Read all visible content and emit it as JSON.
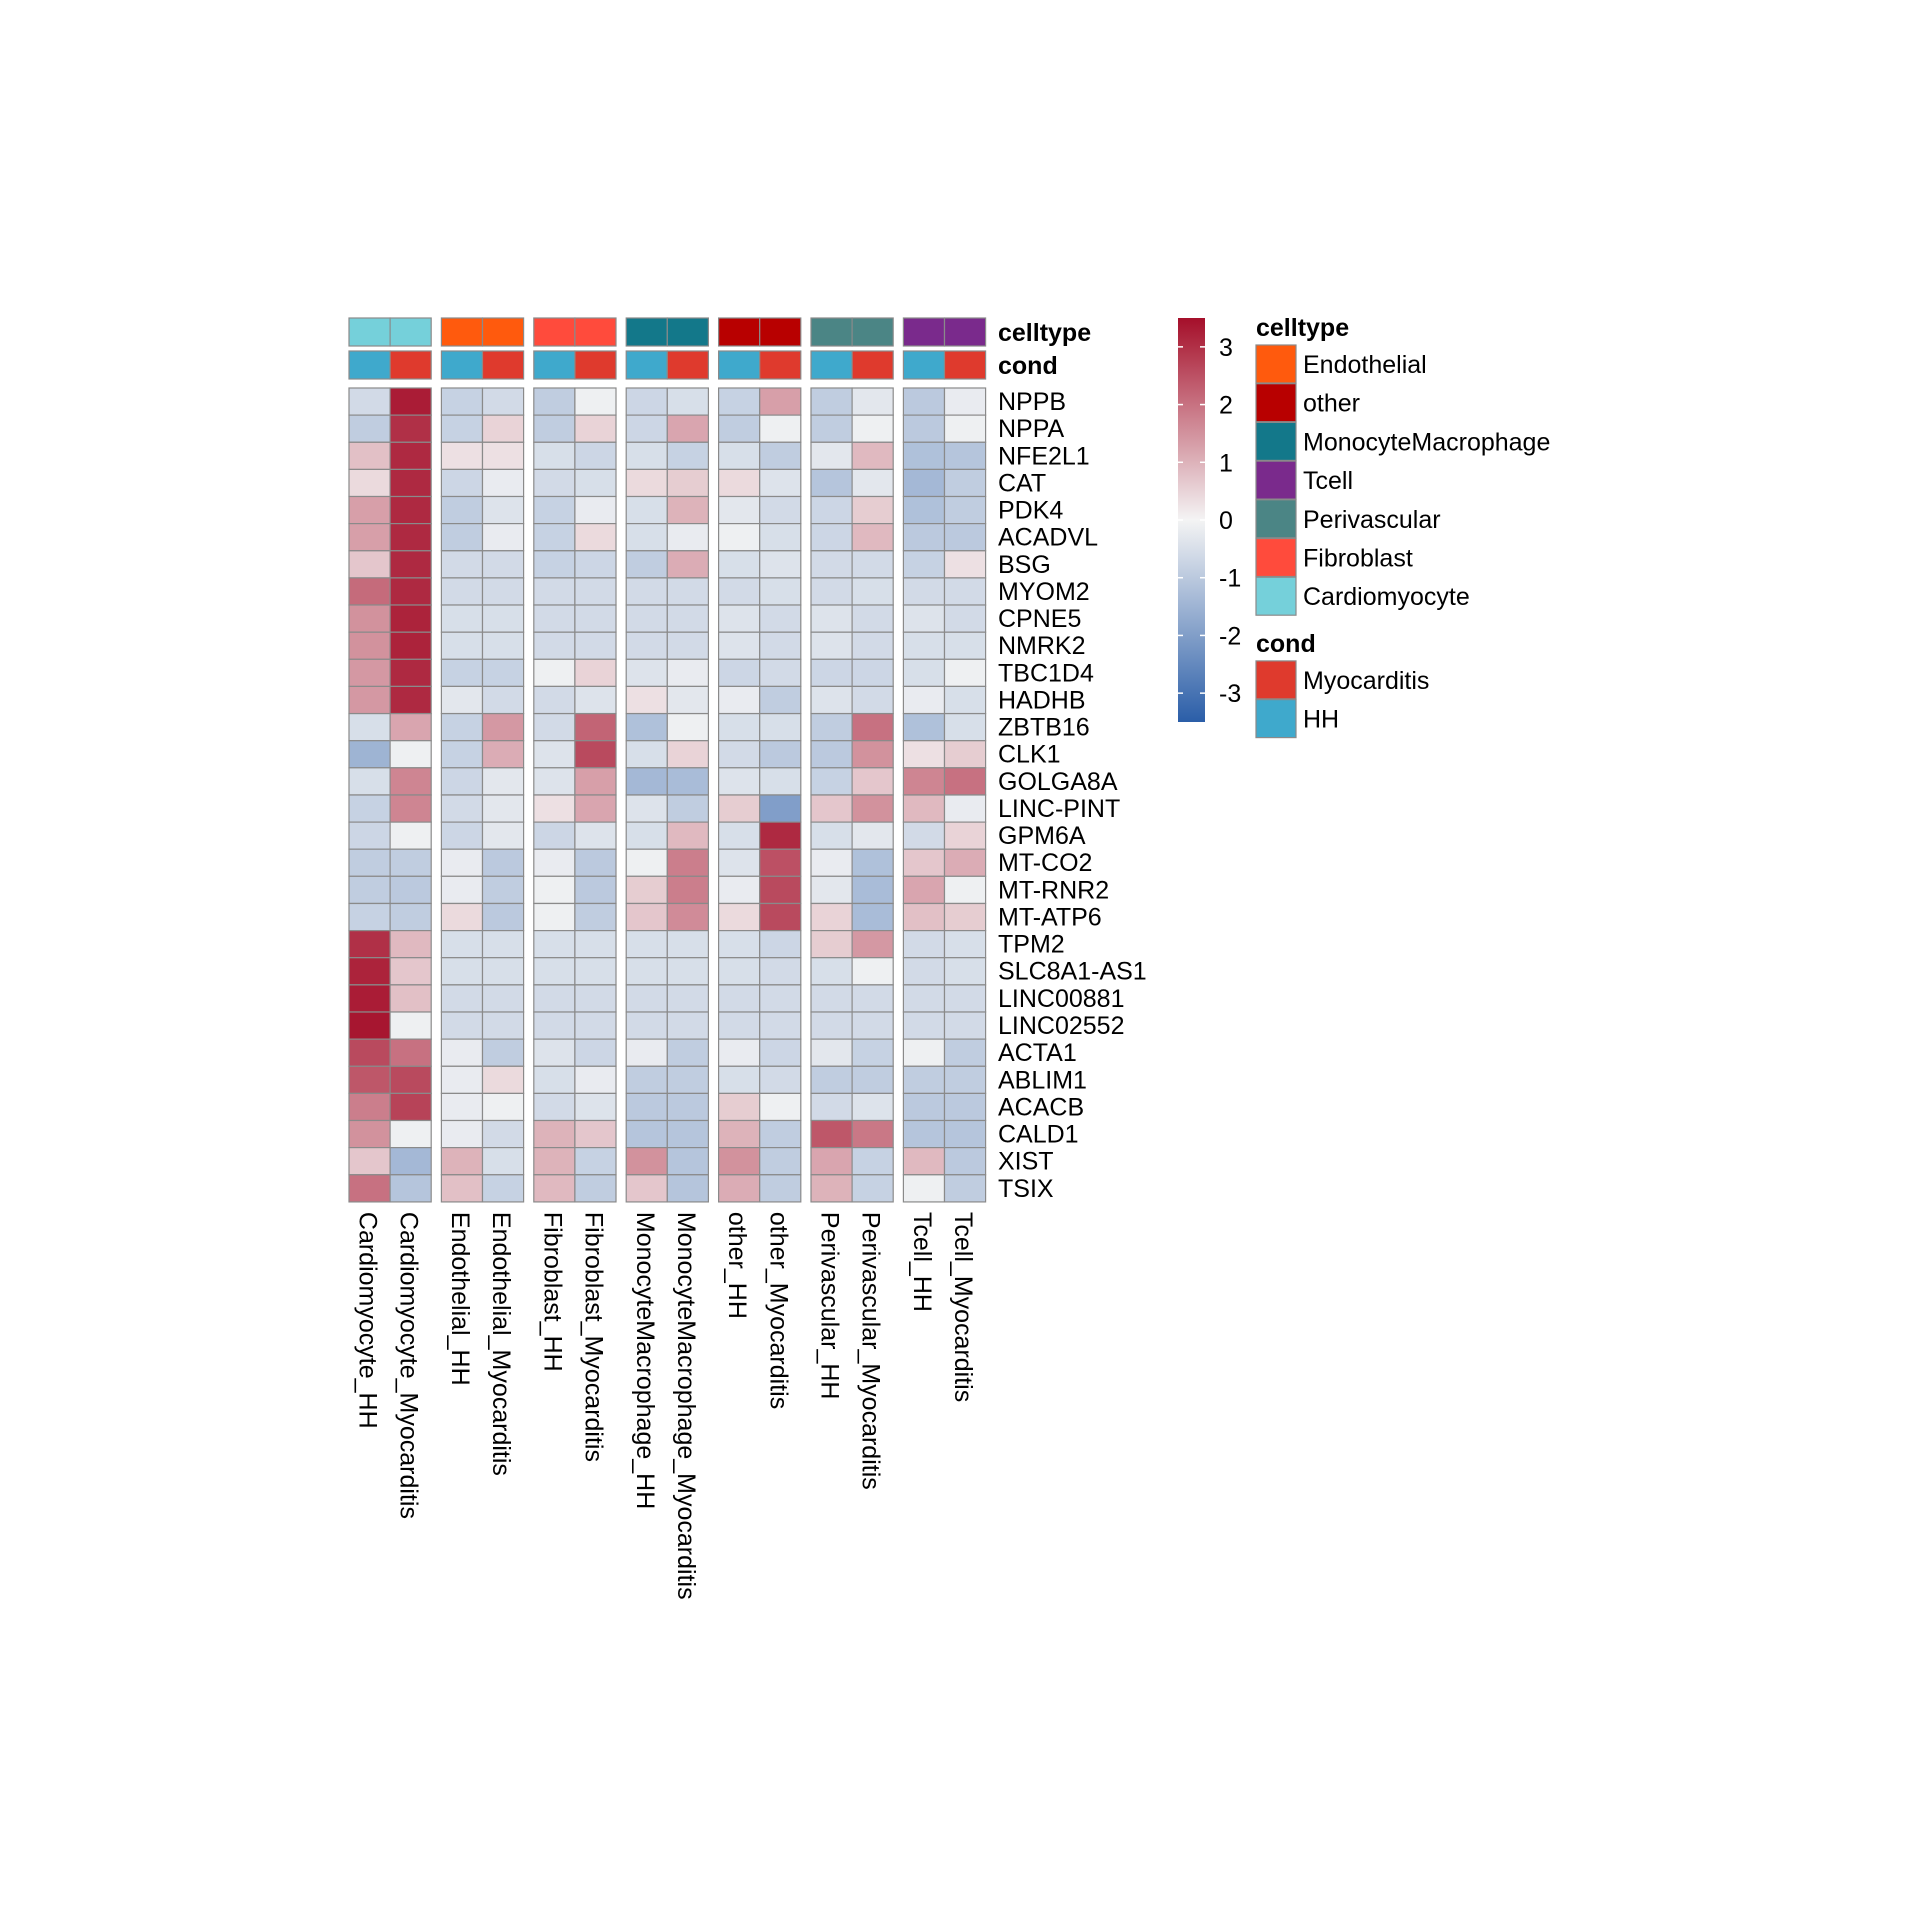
{
  "chart_data": {
    "type": "heatmap",
    "columns": [
      "Cardiomyocyte_HH",
      "Cardiomyocyte_Myocarditis",
      "Endothelial_HH",
      "Endothelial_Myocarditis",
      "Fibroblast_HH",
      "Fibroblast_Myocarditis",
      "MonocyteMacrophage_HH",
      "MonocyteMacrophage_Myocarditis",
      "other_HH",
      "other_Myocarditis",
      "Perivascular_HH",
      "Perivascular_Myocarditis",
      "Tcell_HH",
      "Tcell_Myocarditis"
    ],
    "rows": [
      "NPPB",
      "NPPA",
      "NFE2L1",
      "CAT",
      "PDK4",
      "ACADVL",
      "BSG",
      "MYOM2",
      "CPNE5",
      "NMRK2",
      "TBC1D4",
      "HADHB",
      "ZBTB16",
      "CLK1",
      "GOLGA8A",
      "LINC-PINT",
      "GPM6A",
      "MT-CO2",
      "MT-RNR2",
      "MT-ATP6",
      "TPM2",
      "SLC8A1-AS1",
      "LINC00881",
      "LINC02552",
      "ACTA1",
      "ABLIM1",
      "ACACB",
      "CALD1",
      "XIST",
      "TSIX"
    ],
    "values": [
      [
        -0.6,
        3.3,
        -0.8,
        -0.6,
        -0.9,
        -0.1,
        -0.7,
        -0.5,
        -0.8,
        1.3,
        -0.9,
        -0.3,
        -1.0,
        -0.2
      ],
      [
        -0.9,
        3.0,
        -0.8,
        0.5,
        -0.9,
        0.5,
        -0.7,
        1.2,
        -0.9,
        -0.1,
        -0.9,
        -0.1,
        -1.0,
        -0.1
      ],
      [
        0.8,
        3.1,
        0.3,
        0.3,
        -0.5,
        -0.7,
        -0.5,
        -0.8,
        -0.5,
        -0.9,
        -0.3,
        0.9,
        -1.2,
        -1.1
      ],
      [
        0.4,
        3.1,
        -0.7,
        -0.2,
        -0.6,
        -0.5,
        0.4,
        0.6,
        0.4,
        -0.4,
        -1.1,
        -0.3,
        -1.4,
        -0.9
      ],
      [
        1.3,
        3.1,
        -0.9,
        -0.4,
        -0.8,
        -0.2,
        -0.5,
        1.0,
        -0.3,
        -0.6,
        -0.7,
        0.6,
        -1.2,
        -0.9
      ],
      [
        1.3,
        3.1,
        -0.9,
        -0.2,
        -0.8,
        0.4,
        -0.5,
        -0.2,
        -0.1,
        -0.5,
        -0.7,
        0.9,
        -1.0,
        -1.0
      ],
      [
        0.7,
        3.1,
        -0.6,
        -0.6,
        -0.8,
        -0.7,
        -0.9,
        1.1,
        -0.5,
        -0.4,
        -0.6,
        -0.6,
        -0.8,
        0.3
      ],
      [
        2.1,
        3.1,
        -0.6,
        -0.6,
        -0.6,
        -0.6,
        -0.6,
        -0.6,
        -0.6,
        -0.5,
        -0.6,
        -0.5,
        -0.6,
        -0.6
      ],
      [
        1.5,
        3.2,
        -0.5,
        -0.5,
        -0.6,
        -0.6,
        -0.6,
        -0.6,
        -0.4,
        -0.6,
        -0.4,
        -0.6,
        -0.4,
        -0.6
      ],
      [
        1.5,
        3.2,
        -0.5,
        -0.5,
        -0.6,
        -0.6,
        -0.6,
        -0.6,
        -0.4,
        -0.6,
        -0.4,
        -0.6,
        -0.5,
        -0.5
      ],
      [
        1.4,
        3.1,
        -0.8,
        -0.8,
        -0.1,
        0.5,
        -0.4,
        -0.2,
        -0.7,
        -0.6,
        -0.7,
        -0.7,
        -0.5,
        -0.1
      ],
      [
        1.4,
        3.1,
        -0.3,
        -0.6,
        -0.6,
        -0.4,
        0.3,
        -0.3,
        -0.2,
        -0.9,
        -0.4,
        -0.6,
        -0.2,
        -0.5
      ],
      [
        -0.5,
        1.2,
        -0.8,
        1.4,
        -0.6,
        2.2,
        -1.2,
        -0.1,
        -0.5,
        -0.5,
        -0.9,
        2.0,
        -1.2,
        -0.5
      ],
      [
        -1.5,
        -0.1,
        -0.8,
        1.1,
        -0.4,
        2.6,
        -0.5,
        0.5,
        -0.6,
        -1.0,
        -1.0,
        1.5,
        0.3,
        0.6
      ],
      [
        -0.5,
        1.7,
        -0.7,
        -0.3,
        -0.4,
        1.3,
        -1.4,
        -1.3,
        -0.4,
        -0.5,
        -0.8,
        0.7,
        1.7,
        2.0
      ],
      [
        -0.8,
        1.7,
        -0.6,
        -0.3,
        0.3,
        1.2,
        -0.4,
        -0.9,
        0.6,
        -2.0,
        0.7,
        1.5,
        0.9,
        -0.2
      ],
      [
        -0.7,
        -0.1,
        -0.7,
        -0.3,
        -0.7,
        -0.4,
        -0.5,
        0.9,
        -0.5,
        3.1,
        -0.5,
        -0.3,
        -0.6,
        0.5
      ],
      [
        -0.9,
        -0.9,
        -0.2,
        -1.0,
        -0.2,
        -1.0,
        -0.1,
        1.8,
        -0.4,
        2.5,
        -0.2,
        -1.2,
        0.7,
        1.1
      ],
      [
        -0.9,
        -1.0,
        -0.2,
        -0.9,
        -0.1,
        -1.0,
        0.6,
        1.8,
        -0.2,
        2.6,
        -0.3,
        -1.3,
        1.2,
        -0.1
      ],
      [
        -0.8,
        -0.9,
        0.4,
        -1.0,
        -0.1,
        -0.9,
        0.7,
        1.6,
        0.4,
        2.6,
        0.5,
        -1.3,
        0.8,
        0.6
      ],
      [
        3.0,
        0.9,
        -0.5,
        -0.5,
        -0.5,
        -0.5,
        -0.5,
        -0.5,
        -0.5,
        -0.7,
        0.6,
        1.4,
        -0.6,
        -0.5
      ],
      [
        3.2,
        0.7,
        -0.5,
        -0.5,
        -0.5,
        -0.5,
        -0.5,
        -0.5,
        -0.5,
        -0.6,
        -0.5,
        -0.1,
        -0.6,
        -0.5
      ],
      [
        3.3,
        0.8,
        -0.6,
        -0.6,
        -0.6,
        -0.6,
        -0.6,
        -0.6,
        -0.6,
        -0.6,
        -0.6,
        -0.6,
        -0.6,
        -0.6
      ],
      [
        3.4,
        -0.1,
        -0.6,
        -0.6,
        -0.6,
        -0.6,
        -0.6,
        -0.6,
        -0.6,
        -0.6,
        -0.6,
        -0.6,
        -0.6,
        -0.6
      ],
      [
        2.6,
        2.0,
        -0.2,
        -0.9,
        -0.4,
        -0.7,
        -0.2,
        -0.9,
        -0.2,
        -0.7,
        -0.3,
        -0.8,
        -0.1,
        -0.9
      ],
      [
        2.4,
        2.6,
        -0.2,
        0.4,
        -0.5,
        -0.2,
        -0.9,
        -0.9,
        -0.5,
        -0.6,
        -0.9,
        -0.9,
        -0.9,
        -0.9
      ],
      [
        1.8,
        2.7,
        -0.2,
        -0.1,
        -0.6,
        -0.4,
        -1.0,
        -1.0,
        0.6,
        -0.1,
        -0.6,
        -0.4,
        -1.0,
        -1.0
      ],
      [
        1.5,
        -0.1,
        -0.2,
        -0.6,
        1.0,
        0.7,
        -1.1,
        -1.1,
        1.0,
        -0.9,
        2.4,
        1.9,
        -1.1,
        -1.1
      ],
      [
        0.7,
        -1.4,
        1.0,
        -0.5,
        1.0,
        -0.8,
        1.5,
        -1.1,
        1.5,
        -0.9,
        1.2,
        -0.8,
        0.9,
        -1.0
      ],
      [
        2.0,
        -1.1,
        0.8,
        -0.8,
        0.9,
        -0.9,
        0.7,
        -1.1,
        1.1,
        -0.9,
        1.0,
        -0.8,
        -0.1,
        -0.9
      ]
    ],
    "column_annotations": {
      "celltype": [
        "Cardiomyocyte",
        "Cardiomyocyte",
        "Endothelial",
        "Endothelial",
        "Fibroblast",
        "Fibroblast",
        "MonocyteMacrophage",
        "MonocyteMacrophage",
        "other",
        "other",
        "Perivascular",
        "Perivascular",
        "Tcell",
        "Tcell"
      ],
      "cond": [
        "HH",
        "Myocarditis",
        "HH",
        "Myocarditis",
        "HH",
        "Myocarditis",
        "HH",
        "Myocarditis",
        "HH",
        "Myocarditis",
        "HH",
        "Myocarditis",
        "HH",
        "Myocarditis"
      ]
    },
    "annotation_row_labels": [
      "celltype",
      "cond"
    ],
    "color_scale": {
      "ticks": [
        3,
        2,
        1,
        0,
        -1,
        -2,
        -3
      ],
      "range": [
        -3.5,
        3.5
      ],
      "low": "#2b5ea8",
      "mid": "#f4f4f4",
      "high": "#a50f2a"
    },
    "legends": [
      {
        "title": "celltype",
        "items": [
          {
            "label": "Endothelial",
            "color": "#ff5a0d"
          },
          {
            "label": "other",
            "color": "#b80000"
          },
          {
            "label": "MonocyteMacrophage",
            "color": "#13788a"
          },
          {
            "label": "Tcell",
            "color": "#7a2a8c"
          },
          {
            "label": "Perivascular",
            "color": "#4b8585"
          },
          {
            "label": "Fibroblast",
            "color": "#ff4b3c"
          },
          {
            "label": "Cardiomyocyte",
            "color": "#75d0da"
          }
        ]
      },
      {
        "title": "cond",
        "items": [
          {
            "label": "Myocarditis",
            "color": "#df3a2d"
          },
          {
            "label": "HH",
            "color": "#3fa9cc"
          }
        ]
      }
    ],
    "grid": true,
    "legend_placement": "right"
  }
}
